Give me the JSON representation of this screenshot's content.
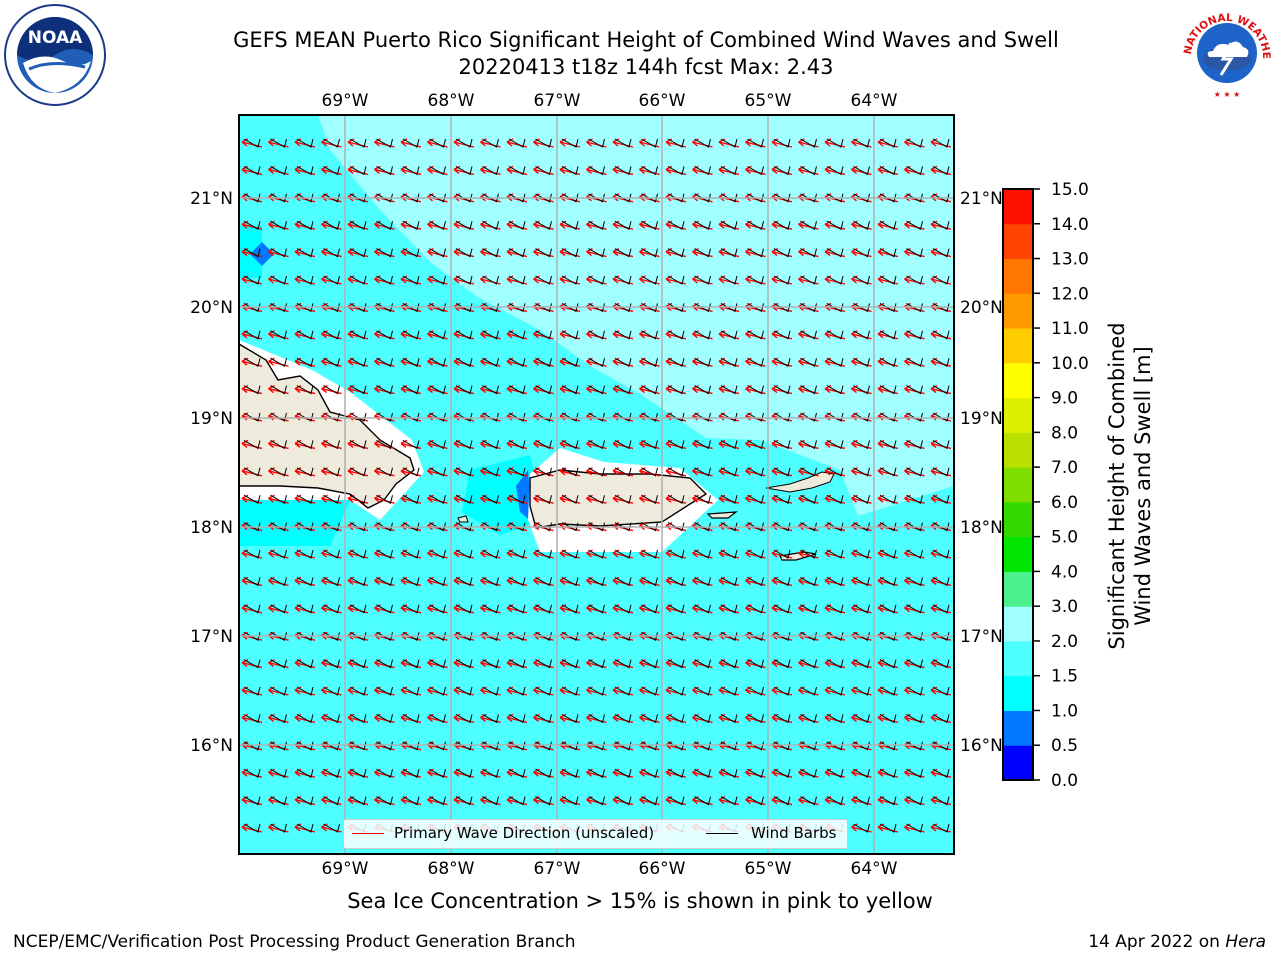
{
  "title_line1": "GEFS MEAN Puerto Rico Significant Height of Combined Wind Waves and Swell",
  "title_line2": "20220413 t18z 144h fcst   Max: 2.43",
  "axes": {
    "lon_labels": [
      "69°W",
      "68°W",
      "67°W",
      "66°W",
      "65°W",
      "64°W"
    ],
    "lat_labels": [
      "21°N",
      "20°N",
      "19°N",
      "18°N",
      "17°N",
      "16°N"
    ]
  },
  "colorbar": {
    "label_line1": "Significant Height of Combined",
    "label_line2": "Wind Waves and Swell [m]",
    "ticks": [
      "15.0",
      "14.0",
      "13.0",
      "12.0",
      "11.0",
      "10.0",
      "9.0",
      "8.0",
      "7.0",
      "6.0",
      "5.0",
      "4.0",
      "3.0",
      "2.0",
      "1.5",
      "1.0",
      "0.5",
      "0.0"
    ],
    "levels": [
      0.0,
      0.5,
      1.0,
      1.5,
      2.0,
      3.0,
      4.0,
      5.0,
      6.0,
      7.0,
      8.0,
      9.0,
      10.0,
      11.0,
      12.0,
      13.0,
      14.0,
      15.0
    ],
    "colors": [
      "#0000ff",
      "#0078ff",
      "#00ffff",
      "#4dffff",
      "#a0ffff",
      "#4cf08c",
      "#00e600",
      "#33d900",
      "#80dd00",
      "#b9e000",
      "#dfef00",
      "#ffff00",
      "#ffcc00",
      "#ff9900",
      "#ff7700",
      "#ff4400",
      "#ff1100"
    ]
  },
  "legend": {
    "wave_label": "Primary Wave Direction (unscaled)",
    "barb_label": "Wind Barbs",
    "wave_color": "#ff0000",
    "barb_color": "#000000"
  },
  "note": "Sea Ice Concentration > 15% is shown in pink to yellow",
  "footer_left": "NCEP/EMC/Verification Post Processing Product Generation Branch",
  "footer_right_date": "14 Apr 2022 on",
  "footer_right_host": "Hera",
  "logos": {
    "noaa_text": "NOAA",
    "nws_text": "NATIONAL WEATHER SERVICE"
  }
}
